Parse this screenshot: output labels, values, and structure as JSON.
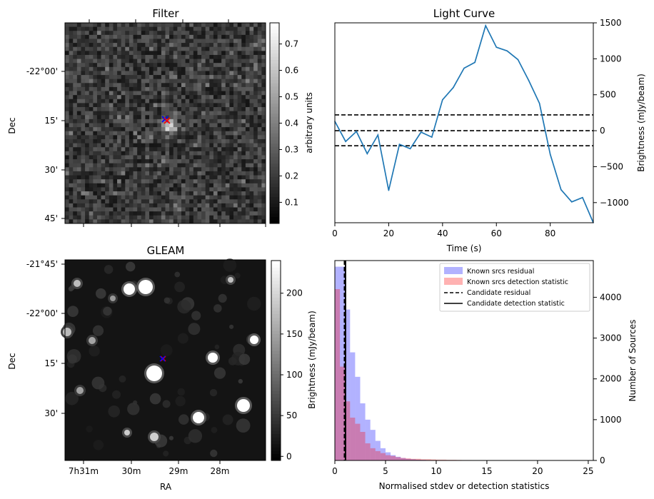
{
  "chart_data": [
    {
      "type": "heatmap",
      "title": "Filter",
      "ylabel": "Dec",
      "y_ticks": [
        "-22°00'",
        "15'",
        "30'",
        "45'"
      ],
      "colorbar": {
        "label": "arbitrary units",
        "ticks": [
          "0.1",
          "0.2",
          "0.3",
          "0.4",
          "0.5",
          "0.6",
          "0.7"
        ],
        "range": [
          0.02,
          0.78
        ],
        "colormap": "gray"
      },
      "markers": [
        {
          "symbol": "x",
          "color": "#0000ff"
        },
        {
          "symbol": "x",
          "color": "#ff0000"
        }
      ]
    },
    {
      "type": "line",
      "title": "Light Curve",
      "xlabel": "Time (s)",
      "ylabel": "Brightness (mJy/beam)",
      "xlim": [
        0,
        96
      ],
      "ylim": [
        -1280,
        1500
      ],
      "x_ticks": [
        0,
        20,
        40,
        60,
        80
      ],
      "y_ticks": [
        -1000,
        -500,
        0,
        500,
        1000,
        1500
      ],
      "series": [
        {
          "color": "#1f77b4",
          "x": [
            0,
            4,
            8,
            12,
            16,
            20,
            24,
            28,
            32,
            36,
            40,
            44,
            48,
            52,
            56,
            60,
            64,
            68,
            72,
            76,
            80,
            84,
            88,
            92,
            96
          ],
          "y": [
            130,
            -150,
            -10,
            -320,
            -60,
            -830,
            -190,
            -250,
            -20,
            -90,
            430,
            600,
            870,
            950,
            1460,
            1160,
            1110,
            990,
            700,
            380,
            -330,
            -820,
            -990,
            -930,
            -1280
          ]
        }
      ],
      "hlines": [
        {
          "y": 220,
          "style": "dashed",
          "color": "#000000"
        },
        {
          "y": 0,
          "style": "dashed",
          "color": "#000000"
        },
        {
          "y": -210,
          "style": "dashed",
          "color": "#000000"
        }
      ]
    },
    {
      "type": "heatmap",
      "title": "GLEAM",
      "xlabel": "RA",
      "ylabel": "Dec",
      "y_ticks": [
        "-21°45'",
        "-22°00'",
        "15'",
        "30'"
      ],
      "x_ticks": [
        "7h31m",
        "30m",
        "29m",
        "28m"
      ],
      "colorbar": {
        "label": "Brightness (mJy/beam)",
        "ticks": [
          "0",
          "50",
          "100",
          "150",
          "200"
        ],
        "range": [
          -5,
          240
        ],
        "colormap": "gray"
      },
      "markers": [
        {
          "symbol": "x",
          "color": "#0000ff"
        },
        {
          "symbol": "x",
          "color": "#ff0000"
        }
      ]
    },
    {
      "type": "bar",
      "xlabel": "Normalised stdev or detection statistics",
      "ylabel": "Number of Sources",
      "xlim": [
        0,
        25.5
      ],
      "ylim": [
        0,
        4900
      ],
      "x_ticks": [
        0,
        5,
        10,
        15,
        20,
        25
      ],
      "y_ticks": [
        0,
        1000,
        2000,
        3000,
        4000
      ],
      "bin_width": 0.5,
      "series": [
        {
          "name": "Known srcs residual",
          "color": "#0000ff",
          "alpha": 0.3,
          "values": [
            4750,
            4750,
            3700,
            2650,
            2050,
            1400,
            1000,
            750,
            480,
            300,
            200,
            130,
            90,
            60,
            40,
            30,
            20,
            15,
            10,
            8,
            6,
            5,
            5,
            4,
            3,
            3,
            2,
            2,
            2,
            2,
            1,
            1,
            1,
            1,
            1,
            1,
            1,
            1,
            1,
            1,
            0,
            0,
            0,
            0,
            0,
            0,
            0,
            0,
            0,
            0,
            0
          ]
        },
        {
          "name": "Known srcs detection statistic",
          "color": "#ff0000",
          "alpha": 0.3,
          "values": [
            4200,
            2300,
            1450,
            1050,
            900,
            700,
            420,
            300,
            230,
            180,
            130,
            110,
            80,
            60,
            50,
            40,
            40,
            30,
            30,
            25,
            20,
            20,
            15,
            15,
            12,
            10,
            10,
            8,
            8,
            6,
            5,
            5,
            4,
            4,
            3,
            3,
            3,
            2,
            2,
            2,
            2,
            2,
            1,
            1,
            1,
            1,
            1,
            1,
            1,
            1,
            1
          ]
        }
      ],
      "vlines": [
        {
          "name": "Candidate residual",
          "x": 0.95,
          "style": "dashed",
          "color": "#000000"
        },
        {
          "name": "Candidate detection statistic",
          "x": 1.05,
          "style": "solid",
          "color": "#000000"
        }
      ],
      "legend_position": "top-right"
    }
  ]
}
